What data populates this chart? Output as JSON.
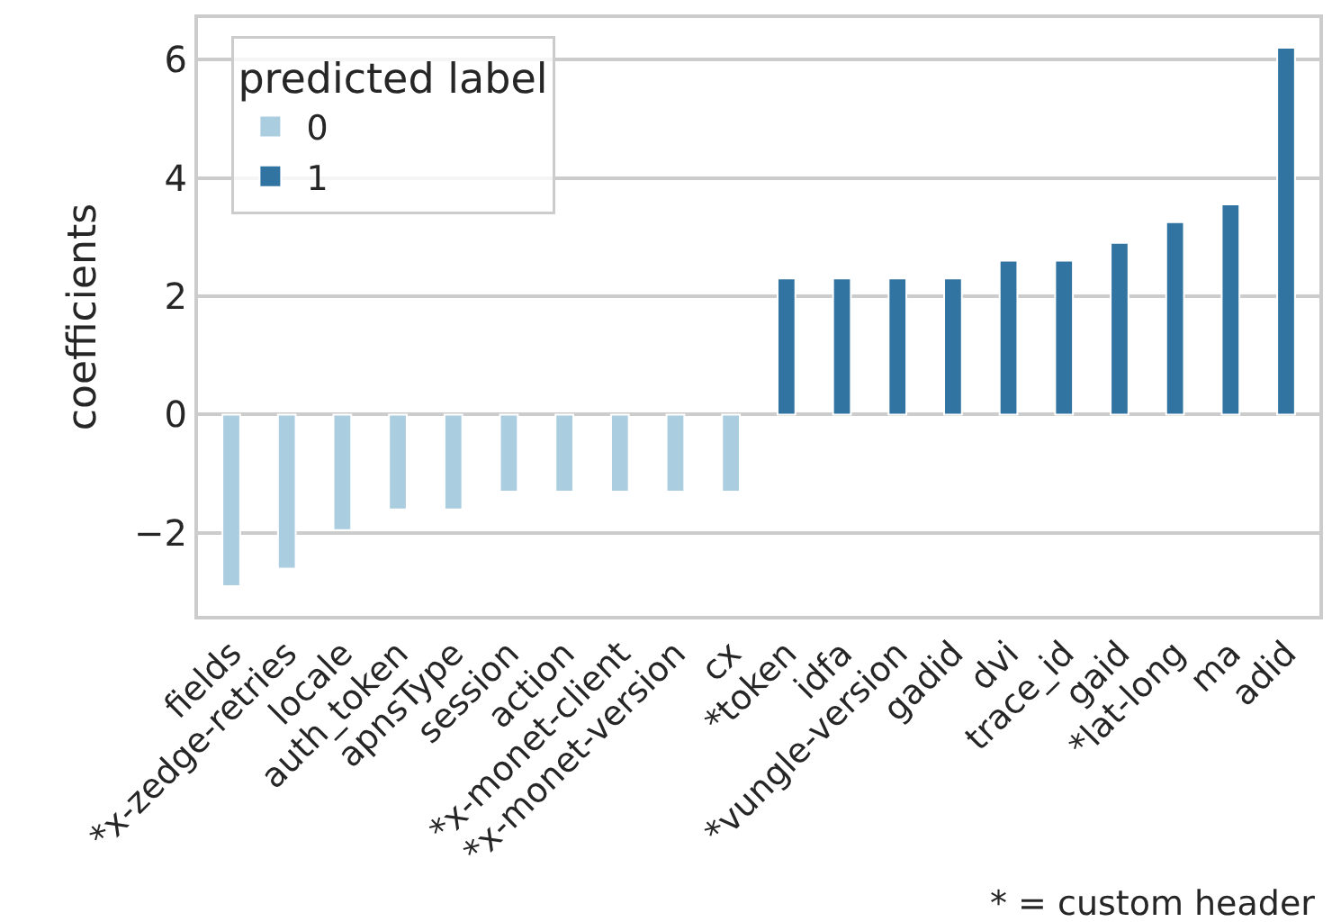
{
  "chart_data": {
    "type": "bar",
    "ylabel": "coefficients",
    "legend_title": "predicted label",
    "legend": "top left",
    "grid": "y",
    "categories": [
      "fields",
      "*x-zedge-retries",
      "locale",
      "auth_token",
      "apnsType",
      "session",
      "action",
      "*x-monet-client",
      "*x-monet-version",
      "cx",
      "*token",
      "idfa",
      "*vungle-version",
      "gadid",
      "dvi",
      "trace_id",
      "gaid",
      "*lat-long",
      "ma",
      "adid"
    ],
    "series": [
      {
        "name": "0",
        "color": "#abcde0",
        "values": [
          -2.9,
          -2.6,
          -1.95,
          -1.6,
          -1.6,
          -1.3,
          -1.3,
          -1.3,
          -1.3,
          -1.3,
          null,
          null,
          null,
          null,
          null,
          null,
          null,
          null,
          null,
          null
        ]
      },
      {
        "name": "1",
        "color": "#3274a1",
        "values": [
          null,
          null,
          null,
          null,
          null,
          null,
          null,
          null,
          null,
          null,
          2.3,
          2.3,
          2.3,
          2.3,
          2.6,
          2.6,
          2.9,
          3.25,
          3.55,
          6.2
        ]
      }
    ],
    "ylim": [
      -3.4,
      6.7
    ],
    "yticks": [
      {
        "value": -2,
        "label": "−2"
      },
      0,
      2,
      4,
      6
    ],
    "annotations": [
      "* = custom header"
    ]
  }
}
